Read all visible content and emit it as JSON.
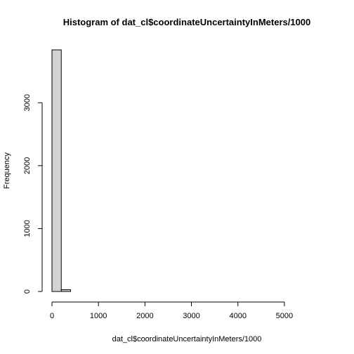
{
  "chart_data": {
    "type": "bar",
    "title": "Histogram of dat_cl$coordinateUncertaintyInMeters/1000",
    "xlabel": "dat_cl$coordinateUncertaintyInMeters/1000",
    "ylabel": "Frequency",
    "xlim": [
      0,
      5600
    ],
    "ylim": [
      0,
      3840
    ],
    "x_ticks": [
      0,
      1000,
      2000,
      3000,
      4000,
      5000
    ],
    "y_ticks": [
      0,
      1000,
      2000,
      3000
    ],
    "bins": [
      {
        "x0": 0,
        "x1": 200,
        "count": 3840
      },
      {
        "x0": 200,
        "x1": 400,
        "count": 28
      },
      {
        "x0": 400,
        "x1": 600,
        "count": 0
      },
      {
        "x0": 600,
        "x1": 800,
        "count": 0
      },
      {
        "x0": 800,
        "x1": 1000,
        "count": 0
      },
      {
        "x0": 1000,
        "x1": 1200,
        "count": 0
      },
      {
        "x0": 1200,
        "x1": 1400,
        "count": 0
      },
      {
        "x0": 1400,
        "x1": 1600,
        "count": 0
      },
      {
        "x0": 1600,
        "x1": 1800,
        "count": 0
      },
      {
        "x0": 1800,
        "x1": 2000,
        "count": 0
      },
      {
        "x0": 2000,
        "x1": 2200,
        "count": 0
      },
      {
        "x0": 2200,
        "x1": 2400,
        "count": 0
      },
      {
        "x0": 2400,
        "x1": 2600,
        "count": 0
      },
      {
        "x0": 2600,
        "x1": 2800,
        "count": 0
      },
      {
        "x0": 2800,
        "x1": 3000,
        "count": 0
      },
      {
        "x0": 3000,
        "x1": 3200,
        "count": 0
      },
      {
        "x0": 3200,
        "x1": 3400,
        "count": 0
      },
      {
        "x0": 3400,
        "x1": 3600,
        "count": 0
      },
      {
        "x0": 3600,
        "x1": 3800,
        "count": 0
      },
      {
        "x0": 3800,
        "x1": 4000,
        "count": 0
      },
      {
        "x0": 4000,
        "x1": 4200,
        "count": 0
      },
      {
        "x0": 4200,
        "x1": 4400,
        "count": 0
      },
      {
        "x0": 4400,
        "x1": 4600,
        "count": 0
      },
      {
        "x0": 4600,
        "x1": 4800,
        "count": 0
      },
      {
        "x0": 4800,
        "x1": 5000,
        "count": 0
      },
      {
        "x0": 5000,
        "x1": 5200,
        "count": 0
      },
      {
        "x0": 5200,
        "x1": 5400,
        "count": 0
      },
      {
        "x0": 5400,
        "x1": 5600,
        "count": 0
      }
    ],
    "bar_fill": "#d3d3d3",
    "bar_stroke": "#000000",
    "grid": false,
    "legend": "none"
  }
}
